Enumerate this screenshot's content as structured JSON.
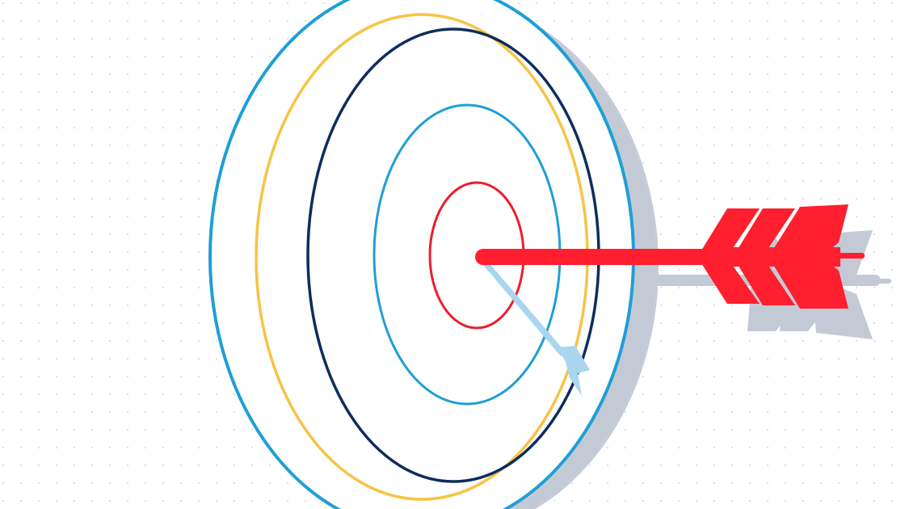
{
  "scene": {
    "subject": "bullseye-target-with-arrow",
    "colors": {
      "background": "#ffffff",
      "dot_grid": "#d7dbe3",
      "shadow": "#c3cad6",
      "ring_outer_blue": "#1e9fd6",
      "ring_yellow": "#f6c445",
      "ring_navy": "#0d2d5e",
      "ring_inner_blue": "#1e9fd6",
      "ring_center_red": "#ea1f2e",
      "arrow_red": "#ff1f2e",
      "arrow_ghost": "#a9d6ee"
    },
    "icons": [
      "target-icon",
      "arrow-icon"
    ]
  }
}
